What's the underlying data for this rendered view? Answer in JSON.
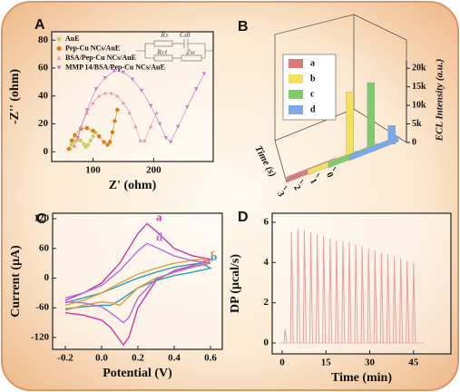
{
  "chart_data": [
    {
      "type": "scatter",
      "label": "A",
      "x_label": "Z' (ohm)",
      "y_label": "-Z'' (ohm)",
      "xlim": [
        32,
        298
      ],
      "ylim": [
        -7,
        86
      ],
      "xticks": [
        100,
        200
      ],
      "yticks": [
        0,
        20,
        40,
        60,
        80
      ],
      "circuit": [
        "Rs",
        "Cdl",
        "Rct",
        "Zw"
      ],
      "series": [
        {
          "name": "AuE",
          "color": "#c9cf6a",
          "marker": "circle",
          "x": [
            62,
            66,
            70,
            75,
            80,
            85,
            88,
            92,
            96,
            100,
            104
          ],
          "values": [
            2,
            5,
            7.5,
            8.5,
            8,
            5.5,
            3.5,
            5,
            8,
            11,
            14
          ]
        },
        {
          "name": "Pep-Cu NCs/AuE",
          "color": "#e07a10",
          "marker": "circle",
          "x": [
            60,
            65,
            70,
            80,
            90,
            100,
            110,
            118,
            124,
            128,
            132,
            136,
            140
          ],
          "values": [
            2,
            8,
            12,
            16.5,
            17,
            15,
            11,
            7,
            5,
            7,
            14,
            22,
            30
          ]
        },
        {
          "name": "BSA/Pep-Cu NCs/AuE",
          "color": "#e898b0",
          "marker": "triangle-up",
          "x": [
            70,
            80,
            90,
            100,
            110,
            120,
            130,
            140,
            150,
            160,
            170,
            178,
            185,
            195,
            205
          ],
          "values": [
            4,
            18,
            28,
            35,
            40,
            42,
            42,
            40,
            35,
            28,
            18,
            8,
            8,
            18,
            28
          ]
        },
        {
          "name": "MMP 14/BSA/Pep-Cu NCs/AuE",
          "color": "#c878c0",
          "marker": "triangle-down",
          "x": [
            75,
            90,
            105,
            120,
            135,
            150,
            165,
            180,
            195,
            210,
            220,
            228,
            240,
            255,
            270,
            283
          ],
          "values": [
            10,
            30,
            45,
            53,
            58,
            57,
            52,
            44,
            33,
            20,
            10,
            7,
            18,
            32,
            45,
            56
          ]
        }
      ]
    },
    {
      "type": "bar3d",
      "label": "B",
      "categories": [
        "a",
        "b",
        "c",
        "d"
      ],
      "colors": [
        "#d97a7a",
        "#f2e060",
        "#7ccc6a",
        "#7aa8e8"
      ],
      "values": [
        300,
        18000,
        18500,
        5000
      ],
      "x_label": "Time (s)",
      "xlim": [
        0,
        3
      ],
      "xticks": [
        0,
        1,
        2,
        3
      ],
      "y_label": "ECL Intensity (a.u.)",
      "ylim": [
        0,
        22000
      ],
      "yticks": [
        0,
        {
          "value": 5000,
          "label": "5k"
        },
        {
          "value": 10000,
          "label": "10k"
        },
        {
          "value": 15000,
          "label": "15k"
        },
        {
          "value": 20000,
          "label": "20k"
        }
      ]
    },
    {
      "type": "line",
      "label": "C",
      "x_label": "Potential (V)",
      "y_label": "Current (μA)",
      "xlim": [
        -0.27,
        0.665
      ],
      "ylim": [
        -144,
        131
      ],
      "xticks": [
        -0.2,
        {
          "value": 0,
          "label": "0.0"
        },
        0.2,
        0.4,
        0.6
      ],
      "yticks": [
        120,
        60,
        0,
        -60,
        -120
      ],
      "series": [
        {
          "name": "a",
          "color": "#c83aa8",
          "x": [
            -0.2,
            -0.1,
            0,
            0.1,
            0.2,
            0.25,
            0.3,
            0.4,
            0.5,
            0.6,
            0.5,
            0.4,
            0.3,
            0.2,
            0.15,
            0.12,
            0.05,
            0,
            -0.1,
            -0.2
          ],
          "values": [
            -45,
            -30,
            -10,
            30,
            90,
            110,
            95,
            60,
            45,
            38,
            25,
            15,
            -5,
            -60,
            -120,
            -135,
            -100,
            -85,
            -75,
            -70
          ]
        },
        {
          "name": "b",
          "color": "#2aa0b8",
          "x": [
            -0.2,
            -0.1,
            0,
            0.1,
            0.2,
            0.3,
            0.4,
            0.5,
            0.55,
            0.6,
            0.5,
            0.4,
            0.3,
            0.2,
            0.1,
            0.05,
            0,
            -0.1,
            -0.2
          ],
          "values": [
            -50,
            -40,
            -30,
            -15,
            0,
            12,
            22,
            28,
            30,
            20,
            12,
            5,
            -5,
            -20,
            -45,
            -55,
            -55,
            -58,
            -62
          ]
        },
        {
          "name": "c",
          "color": "#e0a040",
          "x": [
            -0.2,
            -0.1,
            0,
            0.1,
            0.2,
            0.3,
            0.4,
            0.5,
            0.55,
            0.6,
            0.5,
            0.4,
            0.3,
            0.2,
            0.1,
            0.05,
            0,
            -0.1,
            -0.2
          ],
          "values": [
            -55,
            -45,
            -30,
            -10,
            8,
            20,
            30,
            36,
            38,
            34,
            22,
            12,
            0,
            -20,
            -55,
            -50,
            -48,
            -55,
            -65
          ]
        },
        {
          "name": "d",
          "color": "#b070e0",
          "x": [
            -0.2,
            -0.1,
            0,
            0.1,
            0.2,
            0.25,
            0.3,
            0.4,
            0.5,
            0.6,
            0.5,
            0.4,
            0.3,
            0.2,
            0.15,
            0.12,
            0.05,
            0,
            -0.1,
            -0.2
          ],
          "values": [
            -40,
            -30,
            -15,
            15,
            55,
            70,
            62,
            45,
            35,
            30,
            22,
            12,
            -2,
            -40,
            -80,
            -90,
            -70,
            -58,
            -50,
            -48
          ]
        }
      ]
    },
    {
      "type": "stem",
      "label": "D",
      "x_label": "Time (min)",
      "y_label": "DP (μcal/s)",
      "color": "#e8a0a0",
      "xlim": [
        -3.4,
        57.8
      ],
      "ylim": [
        -0.54,
        6.45
      ],
      "xticks": [
        0,
        15,
        30,
        45
      ],
      "yticks": [
        0,
        2,
        4,
        6
      ],
      "x": [
        1,
        3.2,
        5.4,
        7.6,
        9.8,
        12,
        14.2,
        16.4,
        18.6,
        20.8,
        23,
        25.2,
        27.4,
        29.6,
        31.8,
        34,
        36.2,
        38.4,
        40.6,
        42.8,
        45
      ],
      "values": [
        0.7,
        5.5,
        5.7,
        5.6,
        5.5,
        5.4,
        5.3,
        5.2,
        5.1,
        5.05,
        5.0,
        4.9,
        4.8,
        4.7,
        4.6,
        4.5,
        4.4,
        4.3,
        4.2,
        4.1,
        4.0
      ]
    }
  ]
}
